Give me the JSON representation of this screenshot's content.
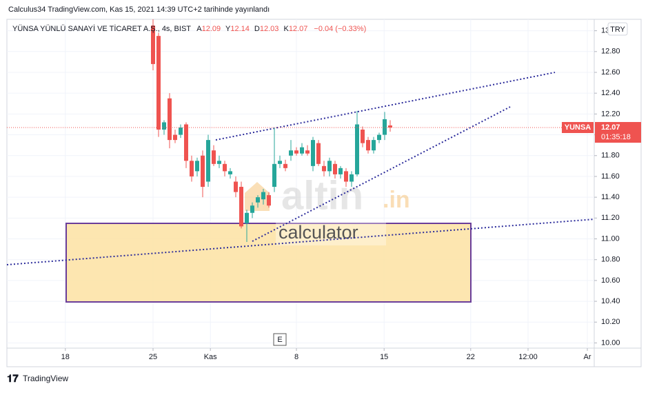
{
  "header": {
    "title": "Calculus34 TradingView.com, Kas 15, 2021 14:39 UTC+2 tarihinde yayınlandı"
  },
  "chart_data": {
    "type": "candlestick",
    "symbol": "YÜNSA YÜNLÜ SANAYİ VE TİCARET A.Ş., 4s, BIST",
    "legend": {
      "open_label": "A",
      "open": 12.09,
      "high_label": "Y",
      "high": 12.14,
      "low_label": "D",
      "low": 12.03,
      "close_label": "K",
      "close": 12.07,
      "change": "−0.04 (−0.33%)"
    },
    "currency": "TRY",
    "price_tag": {
      "name": "YUNSA",
      "value": 12.07,
      "countdown": "01:35:18"
    },
    "event_marker": "E",
    "up_color": "#26a69a",
    "down_color": "#ef5350",
    "open": [
      13.05,
      12.95,
      12.05,
      12.35,
      12.0,
      12.0,
      12.1,
      11.75,
      11.65,
      11.8,
      11.55,
      11.85,
      11.72,
      11.72,
      11.62,
      11.55,
      11.5,
      11.15,
      11.25,
      11.35,
      11.38,
      11.42,
      11.5,
      11.72,
      11.72,
      11.8,
      11.85,
      11.82,
      11.85,
      11.7,
      11.92,
      11.7,
      11.65,
      11.72,
      11.62,
      11.65,
      11.55,
      11.62,
      12.05,
      11.95,
      11.85,
      11.95,
      12.0,
      12.09
    ],
    "high": [
      13.11,
      12.98,
      12.14,
      12.4,
      12.05,
      12.1,
      12.12,
      11.8,
      11.78,
      11.85,
      12.0,
      11.9,
      11.8,
      11.75,
      11.68,
      11.6,
      11.55,
      11.28,
      11.35,
      11.42,
      11.48,
      11.45,
      12.07,
      11.8,
      11.76,
      11.95,
      11.88,
      11.92,
      11.9,
      11.98,
      11.95,
      11.75,
      11.78,
      11.75,
      11.7,
      11.68,
      11.65,
      12.23,
      12.08,
      11.98,
      11.98,
      12.02,
      12.22,
      12.14
    ],
    "low": [
      12.62,
      11.98,
      12.0,
      11.87,
      11.92,
      11.97,
      11.68,
      11.55,
      11.6,
      11.4,
      11.5,
      11.7,
      11.68,
      11.6,
      11.58,
      11.4,
      11.1,
      10.97,
      11.2,
      11.3,
      11.33,
      11.3,
      11.45,
      11.68,
      11.65,
      11.75,
      11.8,
      11.8,
      11.8,
      11.65,
      11.7,
      11.6,
      11.6,
      11.58,
      11.58,
      11.5,
      11.5,
      11.6,
      11.88,
      11.82,
      11.82,
      11.92,
      11.95,
      12.03
    ],
    "close": [
      12.68,
      12.05,
      12.12,
      11.95,
      11.95,
      12.07,
      11.75,
      11.6,
      11.75,
      11.5,
      11.95,
      11.72,
      11.75,
      11.65,
      11.65,
      11.45,
      11.12,
      11.25,
      11.32,
      11.4,
      11.45,
      11.32,
      11.72,
      11.75,
      11.68,
      11.85,
      11.82,
      11.88,
      11.82,
      11.95,
      11.72,
      11.65,
      11.75,
      11.62,
      11.68,
      11.55,
      11.62,
      12.1,
      11.92,
      11.85,
      11.95,
      12.0,
      12.15,
      12.07
    ],
    "ylim": [
      9.95,
      13.11
    ],
    "yticks": [
      {
        "value": 10,
        "label": "10.00"
      },
      {
        "value": 10.2,
        "label": "10.20"
      },
      {
        "value": 10.4,
        "label": "10.40"
      },
      {
        "value": 10.6,
        "label": "10.60"
      },
      {
        "value": 10.8,
        "label": "10.80"
      },
      {
        "value": 11,
        "label": "11.00"
      },
      {
        "value": 11.2,
        "label": "11.20"
      },
      {
        "value": 11.4,
        "label": "11.40"
      },
      {
        "value": 11.6,
        "label": "11.60"
      },
      {
        "value": 11.8,
        "label": "11.80"
      },
      {
        "value": 12,
        "label": "12.00"
      },
      {
        "value": 12.2,
        "label": "12.20"
      },
      {
        "value": 12.4,
        "label": "12.40"
      },
      {
        "value": 12.6,
        "label": "12.60"
      },
      {
        "value": 12.8,
        "label": "12.80"
      },
      {
        "value": 13,
        "label": "13.00"
      }
    ],
    "xlim": [
      -26.5,
      80
    ],
    "xticks": [
      {
        "value": -15.9,
        "label": "18"
      },
      {
        "value": 0,
        "label": "25"
      },
      {
        "value": 10.4,
        "label": "Kas"
      },
      {
        "value": 26,
        "label": "8"
      },
      {
        "value": 41.9,
        "label": "15"
      },
      {
        "value": 57.6,
        "label": "22"
      },
      {
        "value": 68,
        "label": "12:00"
      },
      {
        "value": 78.75,
        "label": "Ar"
      }
    ],
    "grid": true
  },
  "watermark": {
    "brand": "altin",
    "suffix": ".in",
    "sub": "calculator"
  },
  "footer": {
    "brand": "TradingView"
  }
}
